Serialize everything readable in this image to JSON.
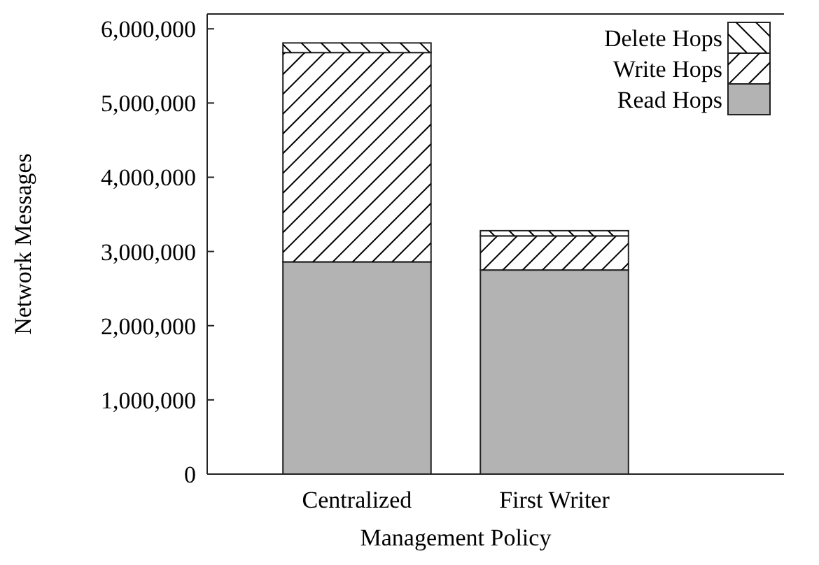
{
  "chart_data": {
    "type": "bar",
    "stacked": true,
    "xlabel": "Management Policy",
    "ylabel": "Network Messages",
    "categories": [
      "Centralized",
      "First Writer"
    ],
    "series": [
      {
        "name": "Read Hops",
        "color": "#b3b3b3",
        "values": [
          2860000,
          2750000
        ]
      },
      {
        "name": "Write Hops",
        "color": "#ffffff",
        "values": [
          2820000,
          460000
        ]
      },
      {
        "name": "Delete Hops",
        "color": "#ffffff",
        "values": [
          130000,
          70000
        ]
      }
    ],
    "ylim": [
      0,
      6200000
    ],
    "yticks": [
      {
        "value": 0,
        "label": "0"
      },
      {
        "value": 1000000,
        "label": "1,000,000"
      },
      {
        "value": 2000000,
        "label": "2,000,000"
      },
      {
        "value": 3000000,
        "label": "3,000,000"
      },
      {
        "value": 4000000,
        "label": "4,000,000"
      },
      {
        "value": 5000000,
        "label": "5,000,000"
      },
      {
        "value": 6000000,
        "label": "6,000,000"
      }
    ],
    "grid": false,
    "legend": "top right"
  }
}
